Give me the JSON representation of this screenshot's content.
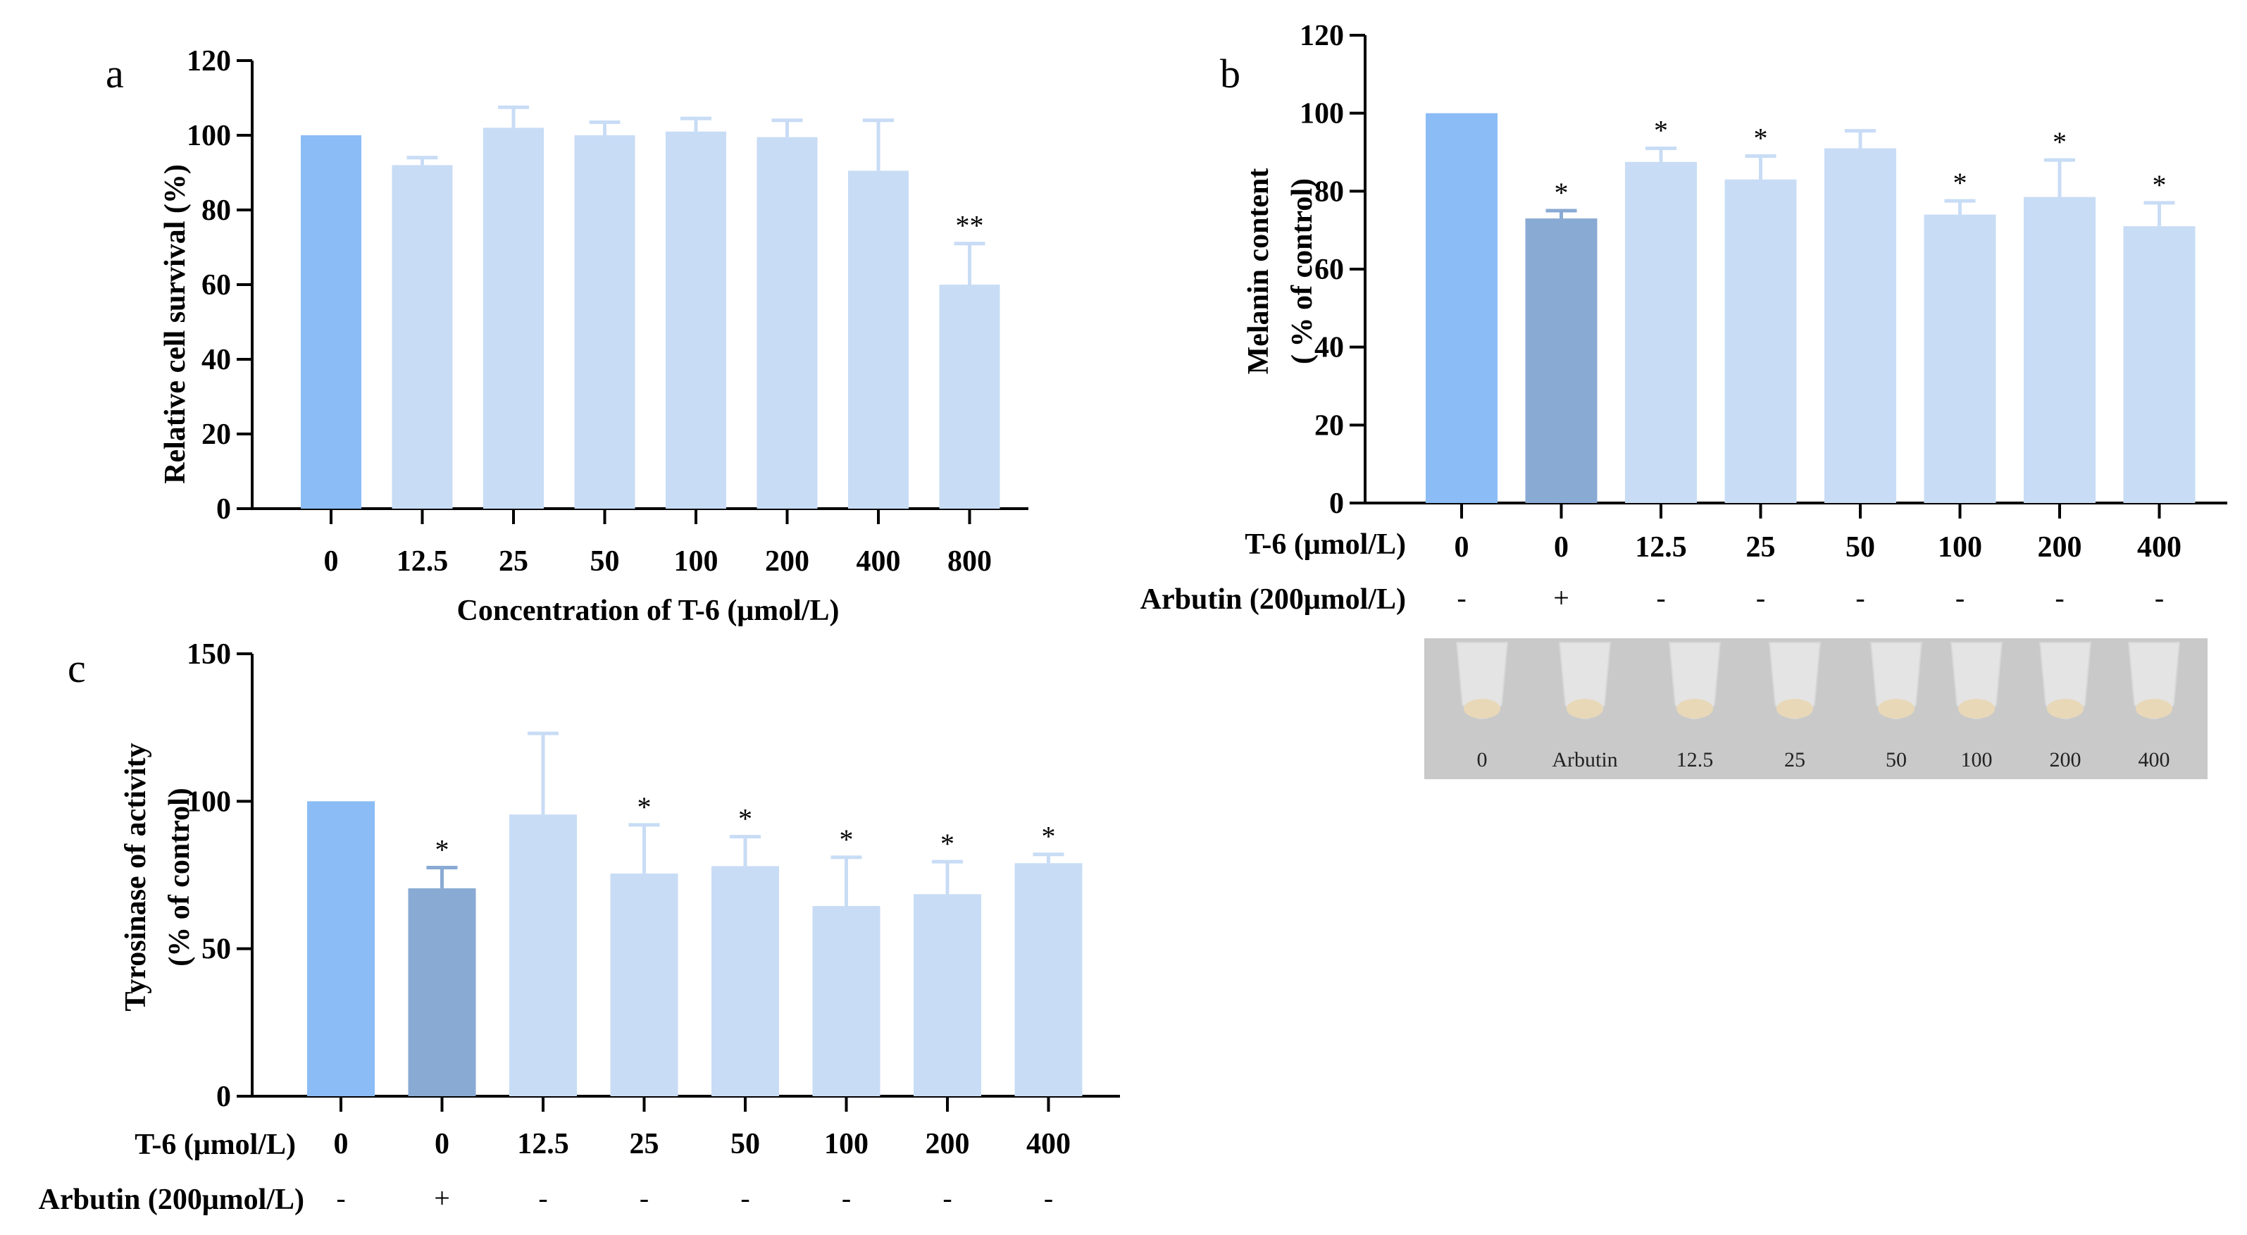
{
  "colors": {
    "control": "#8bbcf5",
    "arbutin": "#89aad3",
    "treatment": "#c8dcf5",
    "axis": "#000000"
  },
  "chart_data": [
    {
      "panel_label": "a",
      "type": "bar",
      "ylabel": "Relative cell survival (%)",
      "xlabel": "Concentration of T-6 (μmol/L)",
      "categories": [
        "0",
        "12.5",
        "25",
        "50",
        "100",
        "200",
        "400",
        "800"
      ],
      "values": [
        100,
        92,
        102,
        100,
        101,
        99.5,
        90.5,
        60
      ],
      "errors": [
        0,
        2,
        5.5,
        3.5,
        3.5,
        4.5,
        13.5,
        11
      ],
      "significance": [
        "",
        "",
        "",
        "",
        "",
        "",
        "",
        "**"
      ],
      "bar_colors": [
        "control",
        "treatment",
        "treatment",
        "treatment",
        "treatment",
        "treatment",
        "treatment",
        "treatment"
      ],
      "ylim": [
        0,
        120
      ],
      "yticks": [
        "0",
        "20",
        "40",
        "60",
        "80",
        "100",
        "120"
      ]
    },
    {
      "panel_label": "b",
      "type": "bar",
      "ylabel_line1": "Melanin content",
      "ylabel_line2": "( % of control)",
      "row1_label": "T-6 (μmol/L)",
      "row2_label": "Arbutin (200μmol/L)",
      "categories": [
        "0",
        "0",
        "12.5",
        "25",
        "50",
        "100",
        "200",
        "400"
      ],
      "arbutin": [
        "-",
        "+",
        "-",
        "-",
        "-",
        "-",
        "-",
        "-"
      ],
      "values": [
        100,
        73,
        87.5,
        83,
        91,
        74,
        78.5,
        71
      ],
      "errors": [
        0,
        2,
        3.5,
        6,
        4.5,
        3.5,
        9.5,
        6
      ],
      "significance": [
        "",
        "*",
        "*",
        "*",
        "",
        "*",
        "*",
        "*"
      ],
      "bar_colors": [
        "control",
        "arbutin",
        "treatment",
        "treatment",
        "treatment",
        "treatment",
        "treatment",
        "treatment"
      ],
      "ylim": [
        0,
        120
      ],
      "yticks": [
        "0",
        "20",
        "40",
        "60",
        "80",
        "100",
        "120"
      ],
      "photo_labels": [
        "0",
        "Arbutin",
        "12.5",
        "25",
        "50",
        "100",
        "200",
        "400"
      ]
    },
    {
      "panel_label": "c",
      "type": "bar",
      "ylabel_line1": "Tyrosinase of activity",
      "ylabel_line2": "(% of control)",
      "row1_label": "T-6 (μmol/L)",
      "row2_label": "Arbutin (200μmol/L)",
      "categories": [
        "0",
        "0",
        "12.5",
        "25",
        "50",
        "100",
        "200",
        "400"
      ],
      "arbutin": [
        "-",
        "+",
        "-",
        "-",
        "-",
        "-",
        "-",
        "-"
      ],
      "values": [
        100,
        70.5,
        95.5,
        75.5,
        78,
        64.5,
        68.5,
        79
      ],
      "errors": [
        0,
        7,
        27.5,
        16.5,
        10,
        16.5,
        11,
        3
      ],
      "significance": [
        "",
        "*",
        "",
        "*",
        "*",
        "*",
        "*",
        "*"
      ],
      "bar_colors": [
        "control",
        "arbutin",
        "treatment",
        "treatment",
        "treatment",
        "treatment",
        "treatment",
        "treatment"
      ],
      "ylim": [
        0,
        150
      ],
      "yticks": [
        "0",
        "50",
        "100",
        "150"
      ]
    }
  ]
}
